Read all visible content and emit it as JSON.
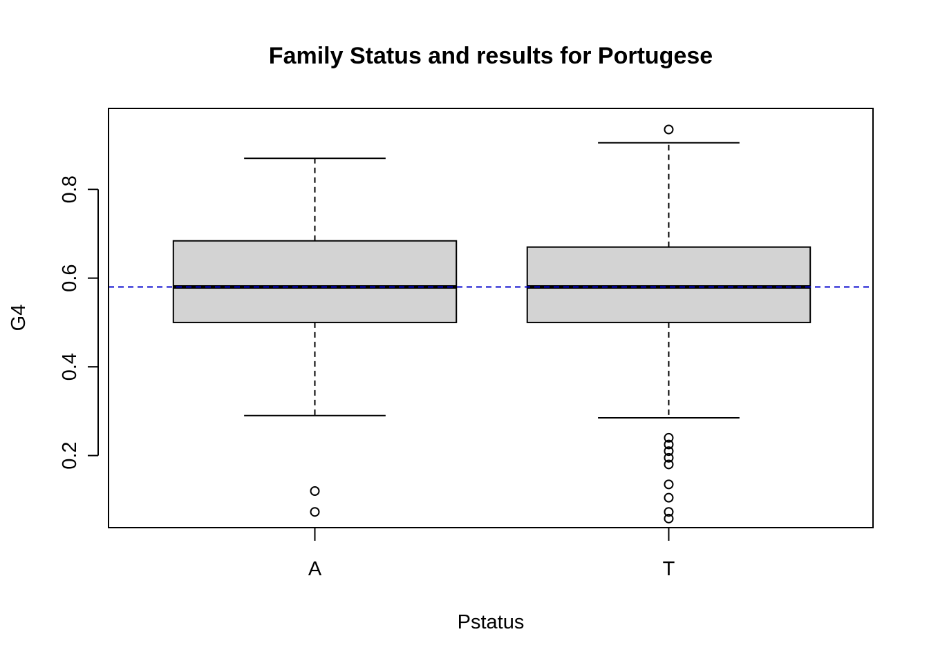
{
  "chart_data": {
    "type": "boxplot",
    "title": "Family Status and results for Portugese",
    "xlabel": "Pstatus",
    "ylabel": "G4",
    "categories": [
      "A",
      "T"
    ],
    "ylim": [
      0.0375,
      0.9825
    ],
    "yticks": [
      0.2,
      0.4,
      0.6,
      0.8
    ],
    "ytick_labels": [
      "0.2",
      "0.4",
      "0.6",
      "0.8"
    ],
    "reference_line": {
      "y": 0.58,
      "style": "dashed",
      "color": "#0000cc"
    },
    "box_fill": "#d3d3d3",
    "boxes": [
      {
        "category": "A",
        "whisker_low": 0.29,
        "q1": 0.5,
        "median": 0.58,
        "q3": 0.684,
        "whisker_high": 0.87,
        "outliers": [
          0.12,
          0.073
        ]
      },
      {
        "category": "T",
        "whisker_low": 0.285,
        "q1": 0.5,
        "median": 0.58,
        "q3": 0.67,
        "whisker_high": 0.905,
        "outliers": [
          0.935,
          0.24,
          0.225,
          0.21,
          0.195,
          0.18,
          0.135,
          0.105,
          0.073,
          0.058
        ]
      }
    ]
  }
}
